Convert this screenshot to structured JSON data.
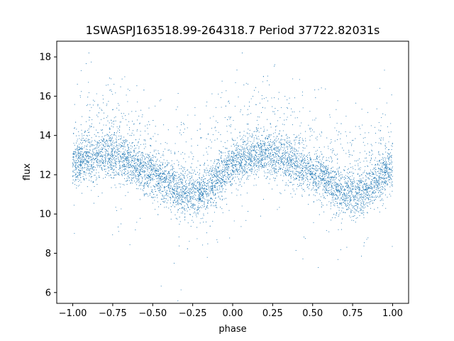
{
  "chart_data": {
    "type": "scatter",
    "title": "1SWASPJ163518.99-264318.7 Period 37722.82031s",
    "xlabel": "phase",
    "ylabel": "flux",
    "xlim": [
      -1.1,
      1.1
    ],
    "ylim": [
      5.45,
      18.8
    ],
    "x_ticks": [
      -1.0,
      -0.75,
      -0.5,
      -0.25,
      0.0,
      0.25,
      0.5,
      0.75,
      1.0
    ],
    "x_tick_labels": [
      "−1.00",
      "−0.75",
      "−0.50",
      "−0.25",
      "0.00",
      "0.25",
      "0.50",
      "0.75",
      "1.00"
    ],
    "y_ticks": [
      6,
      8,
      10,
      12,
      14,
      16,
      18
    ],
    "y_tick_labels": [
      "6",
      "8",
      "10",
      "12",
      "14",
      "16",
      "18"
    ],
    "grid": false,
    "marker_color": "#1f77b4",
    "series": [
      {
        "x": [
          -1.0,
          -0.95,
          -0.9,
          -0.85,
          -0.8,
          -0.75,
          -0.7,
          -0.65,
          -0.6,
          -0.55,
          -0.5,
          -0.45,
          -0.4,
          -0.35,
          -0.3,
          -0.25,
          -0.2,
          -0.15,
          -0.1,
          -0.05,
          0.0,
          0.05,
          0.1,
          0.15,
          0.2,
          0.25,
          0.3,
          0.35,
          0.4,
          0.45,
          0.5,
          0.55,
          0.6,
          0.65,
          0.7,
          0.75,
          0.8,
          0.85,
          0.9,
          0.95,
          1.0
        ],
        "y": [
          12.4,
          12.7,
          12.8,
          12.9,
          13.0,
          13.0,
          12.9,
          12.7,
          12.4,
          12.2,
          12.0,
          11.8,
          11.5,
          11.2,
          11.0,
          10.9,
          11.0,
          11.3,
          11.7,
          12.1,
          12.4,
          12.7,
          12.8,
          12.9,
          13.0,
          13.0,
          12.9,
          12.7,
          12.4,
          12.2,
          12.0,
          11.8,
          11.5,
          11.2,
          11.0,
          10.9,
          11.0,
          11.3,
          11.7,
          12.1,
          12.4
        ]
      }
    ]
  }
}
